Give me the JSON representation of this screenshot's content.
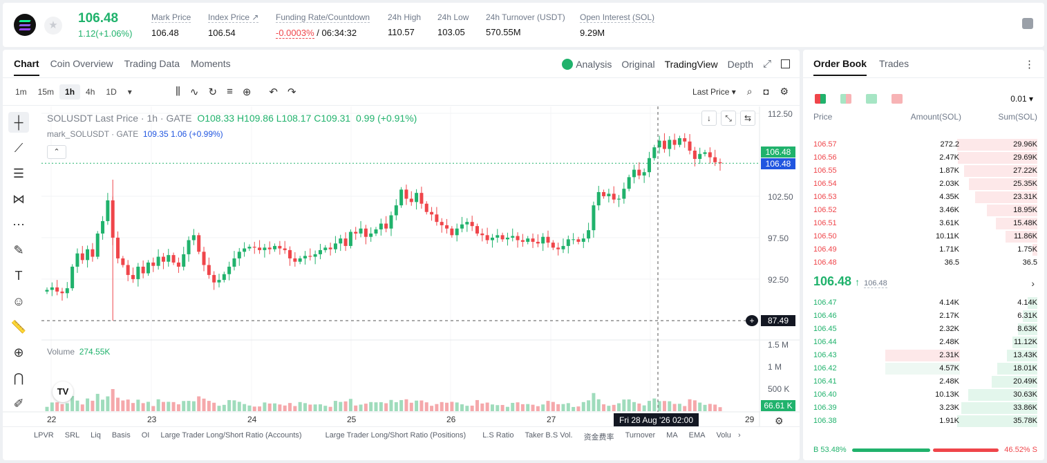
{
  "header": {
    "last_price": "106.48",
    "change": "1.12(+1.06%)",
    "stats": [
      {
        "label": "Mark Price",
        "value": "106.48"
      },
      {
        "label": "Index Price ↗",
        "value": "106.54"
      },
      {
        "label": "Funding Rate/Countdown",
        "value_red": "-0.0003%",
        "value_rest": " / 06:34:32"
      },
      {
        "label": "24h High",
        "value": "110.57"
      },
      {
        "label": "24h Low",
        "value": "103.05"
      },
      {
        "label": "24h Turnover (USDT)",
        "value": "570.55M"
      },
      {
        "label": "Open Interest (SOL)",
        "value": "9.29M"
      }
    ]
  },
  "chart_tabs": [
    "Chart",
    "Coin Overview",
    "Trading Data",
    "Moments"
  ],
  "chart_view_tabs": [
    "Analysis",
    "Original",
    "TradingView",
    "Depth"
  ],
  "intervals": [
    "1m",
    "15m",
    "1h",
    "4h",
    "1D"
  ],
  "price_source": "Last Price",
  "legend": {
    "title": "SOLUSDT Last Price · 1h · GATE",
    "o": "O108.33",
    "h": "H109.86",
    "l": "L108.17",
    "c": "C109.31",
    "chg": "0.99 (+0.91%)",
    "mark_label": "mark_SOLUSDT · GATE",
    "mark_val": "109.35 1.06 (+0.99%)",
    "volume_label": "Volume",
    "volume_val": "274.55K"
  },
  "axis": {
    "prices": [
      "112.50",
      "102.50",
      "97.50",
      "92.50"
    ],
    "volume": [
      "1.5 M",
      "1 M",
      "500 K"
    ],
    "dates": [
      "22",
      "23",
      "24",
      "25",
      "26",
      "27",
      "29"
    ],
    "last_price_badge": "106.48",
    "mark_price_badge": "106.48",
    "crosshair_price": "87.49",
    "volume_badge": "66.61 K",
    "crosshair_time": "Fri 28 Aug '26   02:00"
  },
  "indicators": [
    "LPVR",
    "SRL",
    "Liq",
    "Basis",
    "OI",
    "Large Trader Long/Short Ratio (Accounts)",
    "Large Trader Long/Short Ratio (Positions)",
    "L.S Ratio",
    "Taker B.S Vol.",
    "资金费率",
    "Turnover",
    "MA",
    "EMA",
    "Volu"
  ],
  "chart_data": {
    "type": "candlestick",
    "x_range": [
      "22",
      "29"
    ],
    "y_range": [
      87.49,
      112.5
    ],
    "note_series": "hourly candles estimated from visual",
    "closes": [
      91.2,
      91.5,
      91.0,
      90.8,
      91.4,
      94.0,
      95.6,
      94.8,
      96.1,
      95.2,
      98.0,
      99.5,
      102.0,
      97.5,
      95.0,
      94.2,
      93.0,
      92.5,
      94.0,
      93.2,
      94.5,
      94.1,
      95.2,
      94.6,
      95.4,
      94.5,
      94.0,
      95.5,
      97.2,
      97.8,
      95.8,
      94.2,
      93.0,
      92.1,
      92.4,
      93.1,
      94.0,
      95.0,
      95.8,
      96.2,
      96.4,
      96.3,
      96.0,
      96.3,
      96.1,
      96.5,
      96.2,
      96.0,
      95.0,
      94.6,
      95.0,
      95.3,
      95.2,
      95.5,
      96.0,
      96.3,
      96.1,
      96.8,
      97.4,
      96.5,
      98.2,
      98.0,
      98.6,
      97.6,
      98.0,
      98.5,
      99.2,
      98.6,
      100.2,
      101.4,
      103.3,
      102.2,
      101.8,
      102.9,
      101.6,
      100.6,
      100.3,
      99.4,
      99.0,
      98.6,
      97.8,
      98.6,
      99.1,
      99.4,
      98.9,
      98.0,
      97.8,
      97.2,
      97.5,
      97.8,
      97.3,
      97.5,
      97.7,
      97.2,
      97.0,
      97.4,
      97.0,
      96.8,
      97.6,
      96.9,
      96.3,
      96.1,
      96.5,
      97.3,
      97.3,
      97.0,
      97.4,
      98.4,
      101.4,
      103.0,
      102.5,
      102.8,
      102.1,
      102.2,
      103.4,
      104.8,
      105.7,
      105.0,
      105.4,
      107.1,
      108.4,
      109.2,
      108.2,
      109.3,
      108.7,
      109.5,
      109.1,
      108.0,
      107.0,
      107.6,
      107.8,
      107.2,
      106.6,
      106.48
    ],
    "volume_scale": [
      "500 K",
      "1 M",
      "1.5 M"
    ]
  },
  "orderbook": {
    "tabs": [
      "Order Book",
      "Trades"
    ],
    "precision": "0.01",
    "headers": [
      "Price",
      "Amount(SOL)",
      "Sum(SOL)"
    ],
    "asks": [
      {
        "price": "106.57",
        "amount": "272.2",
        "sum": "29.96K",
        "depth": 1.0
      },
      {
        "price": "106.56",
        "amount": "2.47K",
        "sum": "29.69K",
        "depth": 0.99
      },
      {
        "price": "106.55",
        "amount": "1.87K",
        "sum": "27.22K",
        "depth": 0.91
      },
      {
        "price": "106.54",
        "amount": "2.03K",
        "sum": "25.35K",
        "depth": 0.85
      },
      {
        "price": "106.53",
        "amount": "4.35K",
        "sum": "23.31K",
        "depth": 0.78
      },
      {
        "price": "106.52",
        "amount": "3.46K",
        "sum": "18.95K",
        "depth": 0.63
      },
      {
        "price": "106.51",
        "amount": "3.61K",
        "sum": "15.48K",
        "depth": 0.52
      },
      {
        "price": "106.50",
        "amount": "10.11K",
        "sum": "11.86K",
        "depth": 0.4
      },
      {
        "price": "106.49",
        "amount": "1.71K",
        "sum": "1.75K",
        "depth": 0.06
      },
      {
        "price": "106.48",
        "amount": "36.5",
        "sum": "36.5",
        "depth": 0.0
      }
    ],
    "mid_price": "106.48",
    "mid_arrow": "↑",
    "mark_price": "106.48",
    "bids": [
      {
        "price": "106.47",
        "amount": "4.14K",
        "sum": "4.14K",
        "depth": 0.12
      },
      {
        "price": "106.46",
        "amount": "2.17K",
        "sum": "6.31K",
        "depth": 0.18
      },
      {
        "price": "106.45",
        "amount": "2.32K",
        "sum": "8.63K",
        "depth": 0.24
      },
      {
        "price": "106.44",
        "amount": "2.48K",
        "sum": "11.12K",
        "depth": 0.31
      },
      {
        "price": "106.43",
        "amount": "2.31K",
        "sum": "13.43K",
        "depth": 0.38
      },
      {
        "price": "106.42",
        "amount": "4.57K",
        "sum": "18.01K",
        "depth": 0.5
      },
      {
        "price": "106.41",
        "amount": "2.48K",
        "sum": "20.49K",
        "depth": 0.57
      },
      {
        "price": "106.40",
        "amount": "10.13K",
        "sum": "30.63K",
        "depth": 0.86
      },
      {
        "price": "106.39",
        "amount": "3.23K",
        "sum": "33.86K",
        "depth": 0.95
      },
      {
        "price": "106.38",
        "amount": "1.91K",
        "sum": "35.78K",
        "depth": 1.0
      }
    ],
    "buy_ratio": "53.48%",
    "sell_ratio": "46.52%",
    "buy_fraction": 0.5348
  },
  "colors": {
    "up": "#20b26c",
    "down": "#ef454a",
    "mark": "#2156e0"
  }
}
